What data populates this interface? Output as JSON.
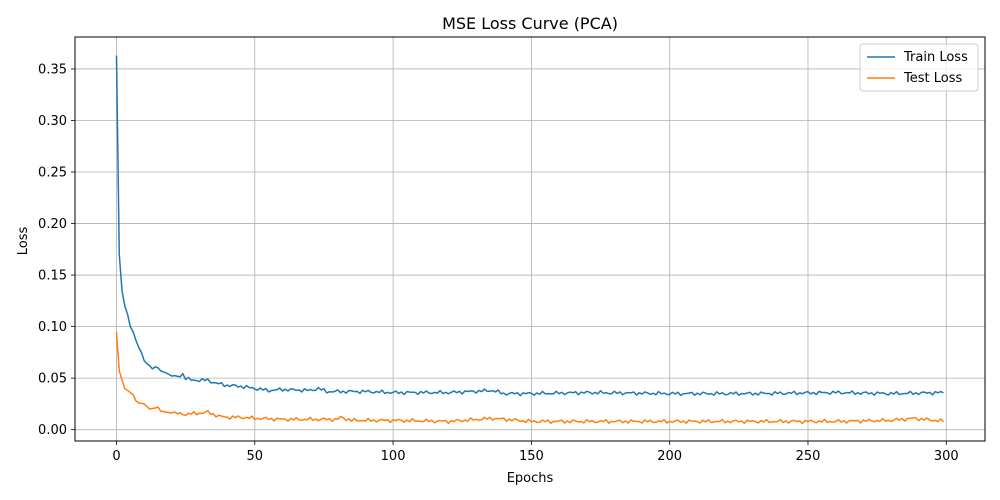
{
  "chart_data": {
    "type": "line",
    "title": "MSE Loss Curve (PCA)",
    "xlabel": "Epochs",
    "ylabel": "Loss",
    "xlim": [
      -15,
      314
    ],
    "ylim": [
      -0.011,
      0.381
    ],
    "xticks": [
      0,
      50,
      100,
      150,
      200,
      250,
      300
    ],
    "yticks": [
      0.0,
      0.05,
      0.1,
      0.15,
      0.2,
      0.25,
      0.3,
      0.35
    ],
    "grid": true,
    "legend_position": "top-right",
    "series": [
      {
        "name": "Train Loss",
        "color": "#1f77b4",
        "keypoints": [
          [
            0,
            0.363
          ],
          [
            1,
            0.17
          ],
          [
            2,
            0.135
          ],
          [
            3,
            0.12
          ],
          [
            4,
            0.112
          ],
          [
            5,
            0.1
          ],
          [
            6,
            0.095
          ],
          [
            7,
            0.087
          ],
          [
            8,
            0.08
          ],
          [
            9,
            0.075
          ],
          [
            10,
            0.067
          ],
          [
            11,
            0.064
          ],
          [
            12,
            0.062
          ],
          [
            13,
            0.059
          ],
          [
            14,
            0.061
          ],
          [
            15,
            0.06
          ],
          [
            16,
            0.057
          ],
          [
            18,
            0.055
          ],
          [
            20,
            0.052
          ],
          [
            22,
            0.051
          ],
          [
            24,
            0.054
          ],
          [
            25,
            0.05
          ],
          [
            27,
            0.048
          ],
          [
            30,
            0.048
          ],
          [
            33,
            0.048
          ],
          [
            36,
            0.045
          ],
          [
            40,
            0.043
          ],
          [
            45,
            0.042
          ],
          [
            50,
            0.04
          ],
          [
            55,
            0.038
          ],
          [
            60,
            0.039
          ],
          [
            70,
            0.038
          ],
          [
            73,
            0.04
          ],
          [
            76,
            0.037
          ],
          [
            80,
            0.037
          ],
          [
            90,
            0.037
          ],
          [
            100,
            0.036
          ],
          [
            120,
            0.036
          ],
          [
            136,
            0.038
          ],
          [
            140,
            0.035
          ],
          [
            150,
            0.035
          ],
          [
            170,
            0.036
          ],
          [
            200,
            0.035
          ],
          [
            230,
            0.035
          ],
          [
            260,
            0.036
          ],
          [
            280,
            0.035
          ],
          [
            300,
            0.036
          ]
        ]
      },
      {
        "name": "Test Loss",
        "color": "#ff7f0e",
        "keypoints": [
          [
            0,
            0.095
          ],
          [
            1,
            0.057
          ],
          [
            2,
            0.048
          ],
          [
            3,
            0.04
          ],
          [
            4,
            0.038
          ],
          [
            6,
            0.034
          ],
          [
            7,
            0.028
          ],
          [
            8,
            0.026
          ],
          [
            10,
            0.025
          ],
          [
            12,
            0.02
          ],
          [
            14,
            0.021
          ],
          [
            15,
            0.022
          ],
          [
            16,
            0.018
          ],
          [
            18,
            0.017
          ],
          [
            20,
            0.016
          ],
          [
            25,
            0.015
          ],
          [
            30,
            0.016
          ],
          [
            33,
            0.017
          ],
          [
            35,
            0.015
          ],
          [
            37,
            0.013
          ],
          [
            40,
            0.012
          ],
          [
            45,
            0.012
          ],
          [
            50,
            0.011
          ],
          [
            60,
            0.01
          ],
          [
            80,
            0.01
          ],
          [
            81,
            0.012
          ],
          [
            85,
            0.009
          ],
          [
            100,
            0.009
          ],
          [
            120,
            0.008
          ],
          [
            136,
            0.011
          ],
          [
            150,
            0.008
          ],
          [
            170,
            0.008
          ],
          [
            200,
            0.008
          ],
          [
            230,
            0.008
          ],
          [
            260,
            0.008
          ],
          [
            280,
            0.009
          ],
          [
            288,
            0.011
          ],
          [
            300,
            0.008
          ]
        ]
      }
    ]
  }
}
